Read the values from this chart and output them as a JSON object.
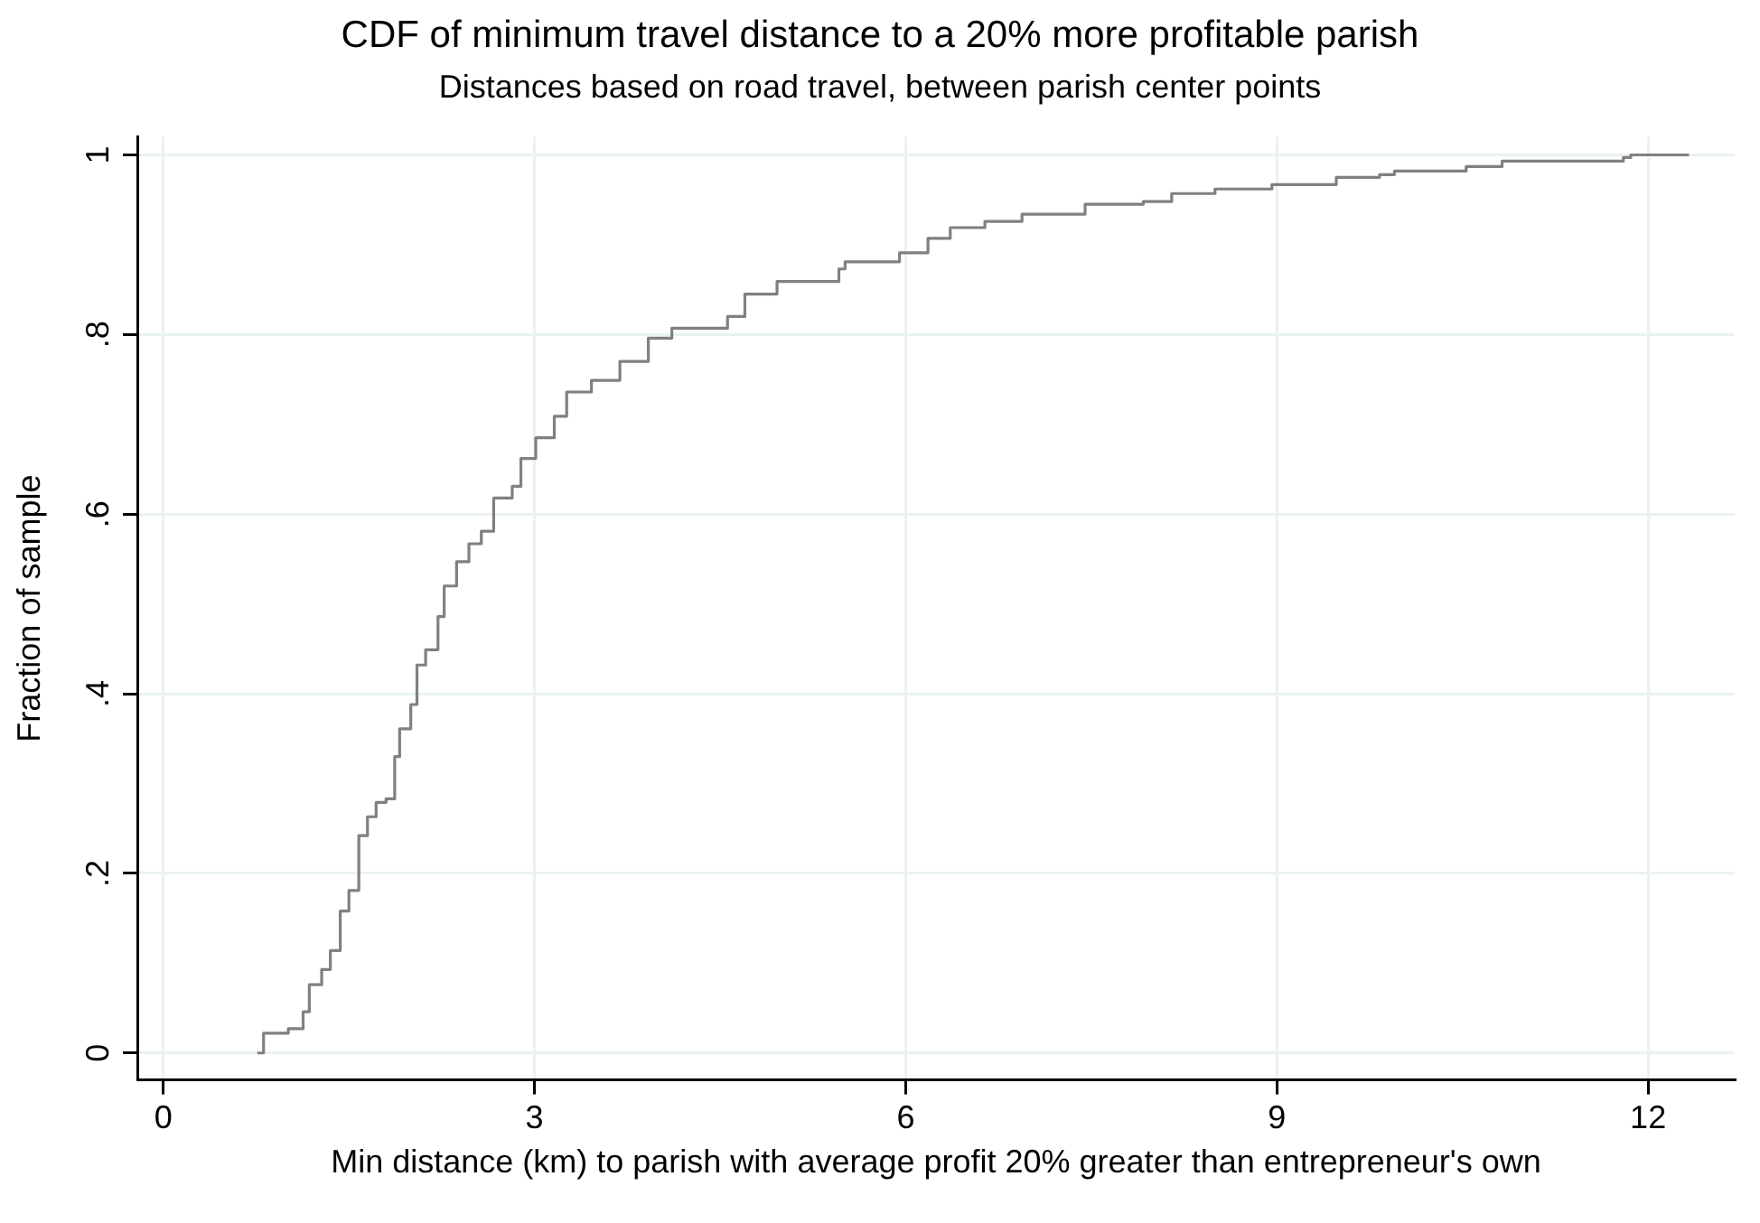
{
  "chart_data": {
    "type": "step",
    "title": "CDF of minimum travel distance to a 20% more profitable parish",
    "subtitle": "Distances based on road travel, between parish center points",
    "xlabel": "Min distance (km) to parish with average profit 20% greater than entrepreneur's own",
    "ylabel": "Fraction of sample",
    "x": [
      0.76,
      0.81,
      1.01,
      1.13,
      1.18,
      1.28,
      1.35,
      1.43,
      1.5,
      1.58,
      1.65,
      1.72,
      1.8,
      1.87,
      1.91,
      2.0,
      2.05,
      2.12,
      2.22,
      2.27,
      2.37,
      2.47,
      2.57,
      2.67,
      2.82,
      2.89,
      3.01,
      3.16,
      3.26,
      3.46,
      3.69,
      3.92,
      4.11,
      4.56,
      4.7,
      4.96,
      5.46,
      5.51,
      5.95,
      6.18,
      6.36,
      6.64,
      6.94,
      7.45,
      7.92,
      8.15,
      8.5,
      8.96,
      9.48,
      9.83,
      9.95,
      10.53,
      10.82,
      11.8,
      11.86,
      12.33
    ],
    "series": [
      {
        "color": "#808080",
        "values": [
          0,
          0.022,
          0.027,
          0.046,
          0.076,
          0.093,
          0.114,
          0.158,
          0.181,
          0.242,
          0.263,
          0.279,
          0.283,
          0.33,
          0.361,
          0.388,
          0.432,
          0.449,
          0.486,
          0.52,
          0.547,
          0.567,
          0.581,
          0.618,
          0.631,
          0.662,
          0.685,
          0.709,
          0.736,
          0.749,
          0.77,
          0.796,
          0.807,
          0.82,
          0.845,
          0.859,
          0.873,
          0.881,
          0.891,
          0.907,
          0.919,
          0.926,
          0.934,
          0.945,
          0.948,
          0.957,
          0.962,
          0.967,
          0.975,
          0.978,
          0.982,
          0.987,
          0.993,
          0.997,
          1.0,
          1.0
        ]
      }
    ],
    "xlim": [
      -0.21,
      12.7
    ],
    "ylim": [
      -0.03,
      1.02
    ],
    "xticks": [
      0,
      3,
      6,
      9,
      12
    ],
    "yticks": [
      0,
      {
        "value": 0.2,
        "label": ".2"
      },
      {
        "value": 0.4,
        "label": ".4"
      },
      {
        "value": 0.6,
        "label": ".6"
      },
      {
        "value": 0.8,
        "label": ".8"
      },
      1
    ],
    "grid": true,
    "legend": false,
    "marker": "none",
    "line_style": "solid"
  }
}
